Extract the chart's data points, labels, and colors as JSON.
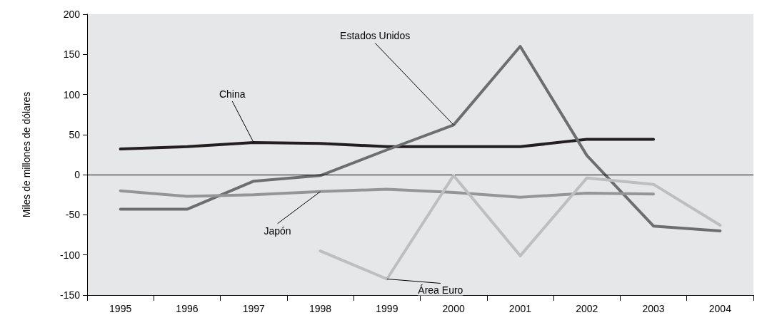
{
  "chart_data": {
    "type": "line",
    "ylabel": "Miles de millones de dólares",
    "categories": [
      "1995",
      "1996",
      "1997",
      "1998",
      "1999",
      "2000",
      "2001",
      "2002",
      "2003",
      "2004"
    ],
    "series": [
      {
        "color": "#231f20",
        "values": [
          32,
          35,
          40,
          39,
          35,
          35,
          35,
          44,
          44,
          null
        ]
      },
      {
        "color": "#6d6e70",
        "values": [
          -43,
          -43,
          -8,
          -1,
          31,
          62,
          160,
          24,
          -64,
          -70
        ]
      },
      {
        "color": "#939598",
        "values": [
          -20,
          -27,
          -25,
          -21,
          -18,
          -22,
          -28,
          -23,
          -24,
          null
        ]
      },
      {
        "color": "#bcbec0",
        "values": [
          null,
          null,
          null,
          -95,
          -130,
          -1,
          -101,
          -4,
          -12,
          -63
        ]
      }
    ],
    "annotations": [
      {
        "text": "China",
        "x": "1997",
        "y": 40
      },
      {
        "text": "Estados Unidos",
        "x": "2000",
        "y": 62
      },
      {
        "text": "Japón",
        "x": "1998",
        "y": -21
      },
      {
        "text": "Área Euro",
        "x": "1999",
        "y": -130
      }
    ],
    "ylim": [
      -150,
      200
    ],
    "yticks": [
      -150,
      -100,
      -50,
      0,
      50,
      100,
      150,
      200
    ],
    "ref_lines": [
      {
        "axis": "y",
        "value": 0,
        "color": "#000000"
      }
    ],
    "grid": false,
    "marker": "none",
    "line_style": "solid"
  }
}
